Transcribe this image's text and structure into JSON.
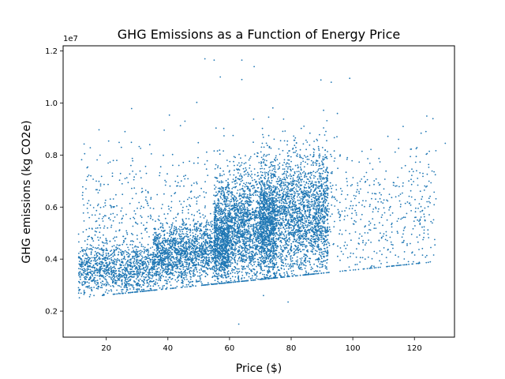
{
  "chart_data": {
    "type": "scatter",
    "title": "GHG Emissions as a Function of Energy Price",
    "xlabel": "Price ($)",
    "ylabel": "GHG emissions (kg CO2e)",
    "y_offset_label": "1e7",
    "xlim": [
      6,
      133
    ],
    "ylim": [
      0.1,
      1.22
    ],
    "xticks": [
      20,
      40,
      60,
      80,
      100,
      120
    ],
    "xtick_labels": [
      "20",
      "40",
      "60",
      "80",
      "100",
      "120"
    ],
    "yticks": [
      0.2,
      0.4,
      0.6,
      0.8,
      1.0,
      1.2
    ],
    "ytick_labels": [
      "0.2",
      "0.4",
      "0.6",
      "0.8",
      "1.0",
      "1.2"
    ],
    "marker_color": "#1f77b4",
    "grid": false,
    "series": [
      {
        "points_summary": "Approximate cloud of ~tens of thousands of points; values in units of 1e7 kg CO2e",
        "clusters": [
          {
            "x_range": [
              11,
              35
            ],
            "y_center": 0.36,
            "y_spread": 0.05,
            "weight": 0.12
          },
          {
            "x_range": [
              35,
              60
            ],
            "y_center": 0.41,
            "y_spread": 0.06,
            "weight": 0.2
          },
          {
            "x_range": [
              55,
              75
            ],
            "y_center": 0.48,
            "y_spread": 0.11,
            "weight": 0.28
          },
          {
            "x_range": [
              70,
              92
            ],
            "y_center": 0.5,
            "y_spread": 0.12,
            "weight": 0.28
          },
          {
            "x_range": [
              88,
              127
            ],
            "y_center": 0.55,
            "y_spread": 0.14,
            "weight": 0.06
          },
          {
            "x_range": [
              12,
              60
            ],
            "y_center": 0.55,
            "y_spread": 0.15,
            "weight": 0.06
          }
        ],
        "notable_points": [
          {
            "x": 52,
            "y": 1.17
          },
          {
            "x": 55,
            "y": 1.165
          },
          {
            "x": 64,
            "y": 1.165
          },
          {
            "x": 64,
            "y": 1.09
          },
          {
            "x": 68,
            "y": 1.14
          },
          {
            "x": 57,
            "y": 1.1
          },
          {
            "x": 93,
            "y": 1.08
          },
          {
            "x": 99,
            "y": 1.095
          },
          {
            "x": 95,
            "y": 0.96
          },
          {
            "x": 124,
            "y": 0.95
          },
          {
            "x": 130,
            "y": 0.845
          },
          {
            "x": 126,
            "y": 0.94
          },
          {
            "x": 63,
            "y": 0.15
          },
          {
            "x": 79,
            "y": 0.235
          },
          {
            "x": 71,
            "y": 0.26
          },
          {
            "x": 11,
            "y": 0.29
          },
          {
            "x": 16,
            "y": 0.26
          },
          {
            "x": 15,
            "y": 0.72
          },
          {
            "x": 22,
            "y": 0.73
          },
          {
            "x": 28,
            "y": 0.76
          }
        ]
      }
    ]
  }
}
